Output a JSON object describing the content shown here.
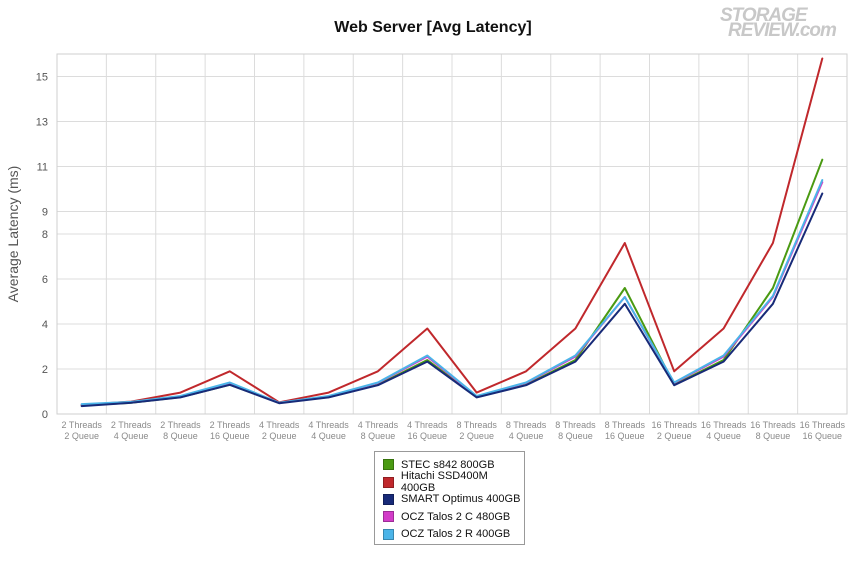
{
  "chart_data": {
    "type": "line",
    "title": "Web Server [Avg Latency]",
    "ylabel": "Average Latency (ms)",
    "xlabel": "",
    "ylim": [
      0,
      16
    ],
    "yticks": [
      0,
      2,
      4,
      6,
      8,
      9,
      11,
      13,
      15
    ],
    "grid": true,
    "legend_position": "bottom",
    "categories": [
      [
        "2 Threads",
        "2 Queue"
      ],
      [
        "2 Threads",
        "4 Queue"
      ],
      [
        "2 Threads",
        "8 Queue"
      ],
      [
        "2 Threads",
        "16 Queue"
      ],
      [
        "4 Threads",
        "2 Queue"
      ],
      [
        "4 Threads",
        "4 Queue"
      ],
      [
        "4 Threads",
        "8 Queue"
      ],
      [
        "4 Threads",
        "16 Queue"
      ],
      [
        "8 Threads",
        "2 Queue"
      ],
      [
        "8 Threads",
        "4 Queue"
      ],
      [
        "8 Threads",
        "8 Queue"
      ],
      [
        "8 Threads",
        "16 Queue"
      ],
      [
        "16 Threads",
        "2 Queue"
      ],
      [
        "16 Threads",
        "4 Queue"
      ],
      [
        "16 Threads",
        "8 Queue"
      ],
      [
        "16 Threads",
        "16 Queue"
      ]
    ],
    "series": [
      {
        "name": "STEC s842 800GB",
        "color": "#4a9a12",
        "values": [
          0.38,
          0.5,
          0.75,
          1.3,
          0.5,
          0.75,
          1.3,
          2.4,
          0.75,
          1.3,
          2.4,
          5.6,
          1.3,
          2.4,
          5.6,
          11.3
        ]
      },
      {
        "name": "Hitachi SSD400M 400GB",
        "color": "#c0282c",
        "values": [
          0.4,
          0.55,
          0.95,
          1.9,
          0.52,
          0.95,
          1.9,
          3.8,
          0.95,
          1.9,
          3.8,
          7.6,
          1.9,
          3.8,
          7.6,
          15.8
        ]
      },
      {
        "name": "SMART Optimus 400GB",
        "color": "#172a78",
        "values": [
          0.35,
          0.5,
          0.74,
          1.3,
          0.48,
          0.74,
          1.28,
          2.33,
          0.74,
          1.28,
          2.33,
          4.9,
          1.28,
          2.33,
          4.9,
          9.8
        ]
      },
      {
        "name": "OCZ Talos 2 C 480GB",
        "color": "#d23cc8",
        "values": [
          0.42,
          0.52,
          0.78,
          1.38,
          0.5,
          0.78,
          1.38,
          2.55,
          0.78,
          1.38,
          2.55,
          5.2,
          1.38,
          2.55,
          5.2,
          10.3
        ]
      },
      {
        "name": "OCZ Talos 2 R 400GB",
        "color": "#4bb4e8",
        "values": [
          0.44,
          0.54,
          0.8,
          1.4,
          0.5,
          0.8,
          1.4,
          2.6,
          0.8,
          1.4,
          2.6,
          5.2,
          1.4,
          2.6,
          5.25,
          10.4
        ]
      }
    ]
  },
  "logo": {
    "line1": "STORAGE",
    "line2": "REVIEW.com"
  }
}
